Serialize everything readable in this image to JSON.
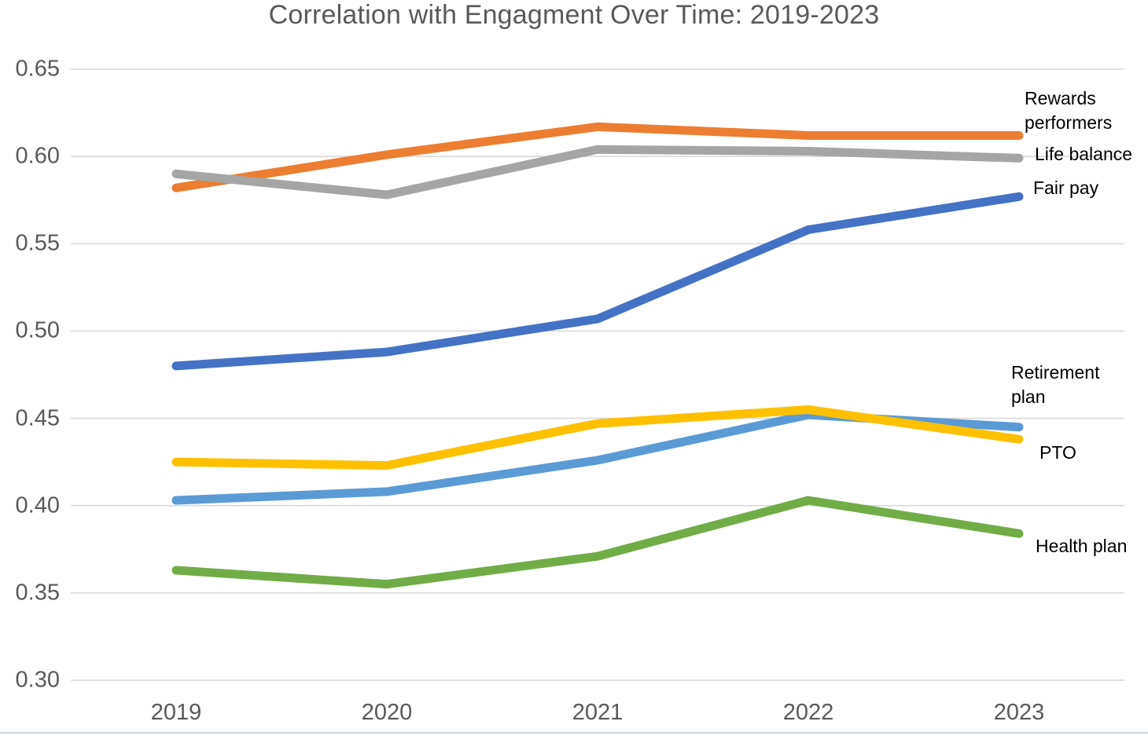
{
  "title": "Correlation with Engagment Over Time: 2019-2023",
  "chart_data": {
    "type": "line",
    "title": "Correlation with Engagment Over Time: 2019-2023",
    "categories": [
      "2019",
      "2020",
      "2021",
      "2022",
      "2023"
    ],
    "series": [
      {
        "name": "Rewards performers",
        "color": "#ED7D31",
        "values": [
          0.582,
          0.601,
          0.617,
          0.612,
          0.612
        ]
      },
      {
        "name": "Life balance",
        "color": "#A5A5A5",
        "values": [
          0.59,
          0.578,
          0.604,
          0.603,
          0.599
        ]
      },
      {
        "name": "Fair pay",
        "color": "#4472C4",
        "values": [
          0.48,
          0.488,
          0.507,
          0.558,
          0.577
        ]
      },
      {
        "name": "Retirement plan",
        "color": "#5B9BD5",
        "values": [
          0.403,
          0.408,
          0.426,
          0.452,
          0.445
        ]
      },
      {
        "name": "PTO",
        "color": "#FFC000",
        "values": [
          0.425,
          0.423,
          0.447,
          0.455,
          0.438
        ]
      },
      {
        "name": "Health plan",
        "color": "#70AD47",
        "values": [
          0.363,
          0.355,
          0.371,
          0.403,
          0.384
        ]
      }
    ],
    "ylim": [
      0.3,
      0.65
    ],
    "yticks": [
      "0.30",
      "0.35",
      "0.40",
      "0.45",
      "0.50",
      "0.55",
      "0.60",
      "0.65"
    ],
    "xlabel": "",
    "ylabel": "",
    "grid": true,
    "gridline_color": "#D9D9D9",
    "background_color": "#FFFFFF",
    "label_color": "#595959",
    "series_label_color": "#000000",
    "legend_position": "labels-at-line-ends-right"
  }
}
